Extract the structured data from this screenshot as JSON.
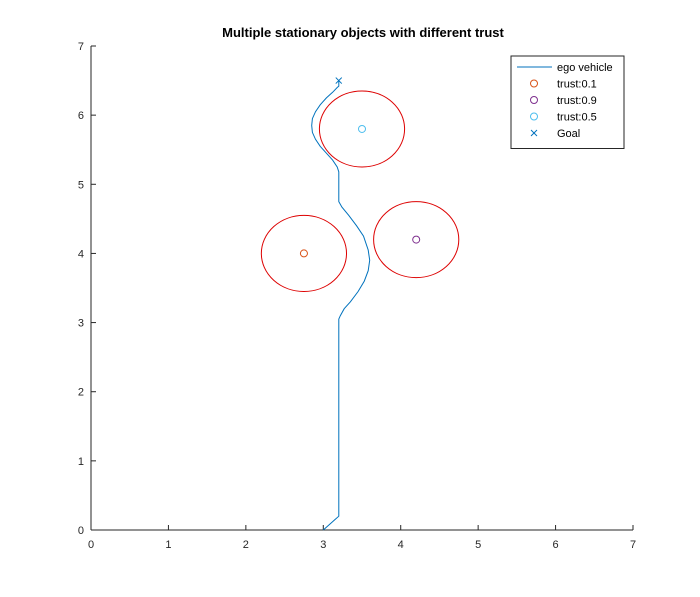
{
  "chart_data": {
    "type": "line",
    "title": "Multiple stationary objects with different trust",
    "xlabel": "",
    "ylabel": "",
    "xlim": [
      0,
      7
    ],
    "ylim": [
      0,
      7
    ],
    "xticks": [
      0,
      1,
      2,
      3,
      4,
      5,
      6,
      7
    ],
    "yticks": [
      0,
      1,
      2,
      3,
      4,
      5,
      6,
      7
    ],
    "grid": false,
    "legend_position": "top-right",
    "series": [
      {
        "name": "ego vehicle",
        "kind": "line",
        "color": "#0072BD",
        "x": [
          3.0,
          3.05,
          3.1,
          3.15,
          3.2,
          3.2,
          3.2,
          3.2,
          3.2,
          3.2,
          3.22,
          3.27,
          3.35,
          3.45,
          3.53,
          3.58,
          3.6,
          3.58,
          3.52,
          3.43,
          3.33,
          3.24,
          3.2,
          3.2,
          3.2,
          3.18,
          3.12,
          3.04,
          2.96,
          2.9,
          2.86,
          2.85,
          2.86,
          2.9,
          2.96,
          3.04,
          3.12,
          3.18,
          3.2,
          3.2
        ],
        "y": [
          0.0,
          0.05,
          0.1,
          0.15,
          0.2,
          1.0,
          2.0,
          2.8,
          3.0,
          3.05,
          3.1,
          3.2,
          3.3,
          3.45,
          3.6,
          3.75,
          3.9,
          4.05,
          4.25,
          4.4,
          4.55,
          4.67,
          4.75,
          5.0,
          5.18,
          5.25,
          5.35,
          5.45,
          5.55,
          5.65,
          5.75,
          5.85,
          5.95,
          6.05,
          6.15,
          6.25,
          6.33,
          6.4,
          6.42,
          6.5
        ]
      },
      {
        "name": "trust:0.1",
        "kind": "marker",
        "marker": "circle",
        "color": "#D95319",
        "x": [
          2.75
        ],
        "y": [
          4.0
        ]
      },
      {
        "name": "trust:0.9",
        "kind": "marker",
        "marker": "circle",
        "color": "#7E2F8E",
        "x": [
          4.2
        ],
        "y": [
          4.2
        ]
      },
      {
        "name": "trust:0.5",
        "kind": "marker",
        "marker": "circle",
        "color": "#4DBEEE",
        "x": [
          3.5
        ],
        "y": [
          5.8
        ]
      },
      {
        "name": "Goal",
        "kind": "marker",
        "marker": "x",
        "color": "#0072BD",
        "x": [
          3.2
        ],
        "y": [
          6.5
        ]
      }
    ],
    "safety_circles": {
      "color": "#DD0000",
      "radius": 0.55,
      "centers": [
        {
          "x": 2.75,
          "y": 4.0
        },
        {
          "x": 4.2,
          "y": 4.2
        },
        {
          "x": 3.5,
          "y": 5.8
        }
      ]
    }
  }
}
